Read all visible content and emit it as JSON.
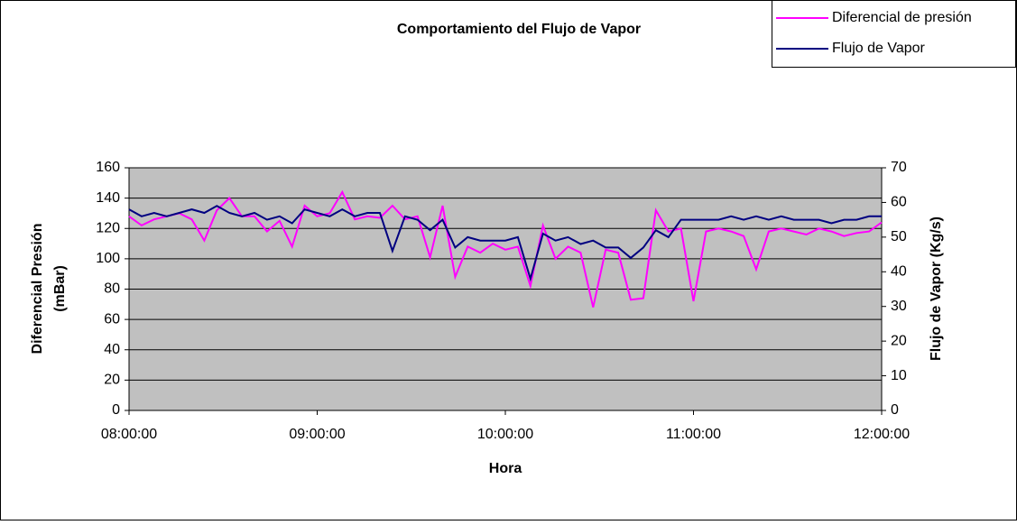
{
  "chart_data": {
    "type": "line",
    "title": "Comportamiento del Flujo de Vapor",
    "x_label": "Hora",
    "y_label": [
      "Diferencial Presión",
      "(mBar)"
    ],
    "y2_label": "Flujo de Vapor (Kg/s)",
    "x": [
      "08:00:00",
      "08:04:00",
      "08:08:00",
      "08:12:00",
      "08:16:00",
      "08:20:00",
      "08:24:00",
      "08:28:00",
      "08:32:00",
      "08:36:00",
      "08:40:00",
      "08:44:00",
      "08:48:00",
      "08:52:00",
      "08:56:00",
      "09:00:00",
      "09:04:00",
      "09:08:00",
      "09:12:00",
      "09:16:00",
      "09:20:00",
      "09:24:00",
      "09:28:00",
      "09:32:00",
      "09:36:00",
      "09:40:00",
      "09:44:00",
      "09:48:00",
      "09:52:00",
      "09:56:00",
      "10:00:00",
      "10:04:00",
      "10:08:00",
      "10:12:00",
      "10:16:00",
      "10:20:00",
      "10:24:00",
      "10:28:00",
      "10:32:00",
      "10:36:00",
      "10:40:00",
      "10:44:00",
      "10:48:00",
      "10:52:00",
      "10:56:00",
      "11:00:00",
      "11:04:00",
      "11:08:00",
      "11:12:00",
      "11:16:00",
      "11:20:00",
      "11:24:00",
      "11:28:00",
      "11:32:00",
      "11:36:00",
      "11:40:00",
      "11:44:00",
      "11:48:00",
      "11:52:00",
      "11:56:00",
      "12:00:00"
    ],
    "series": [
      {
        "name": "Diferencial de presión",
        "color": "#ff00ff",
        "axis": "y",
        "values": [
          128,
          122,
          126,
          128,
          130,
          126,
          112,
          132,
          140,
          128,
          128,
          118,
          125,
          108,
          135,
          128,
          130,
          144,
          126,
          128,
          127,
          135,
          126,
          128,
          101,
          135,
          88,
          108,
          104,
          110,
          106,
          108,
          82,
          122,
          100,
          108,
          104,
          68,
          106,
          104,
          73,
          74,
          132,
          118,
          120,
          72,
          118,
          120,
          118,
          115,
          93,
          118,
          120,
          118,
          116,
          120,
          118,
          115,
          117,
          118,
          124
        ]
      },
      {
        "name": "Flujo de Vapor",
        "color": "#000080",
        "axis": "y2",
        "values": [
          58,
          56,
          57,
          56,
          57,
          58,
          57,
          59,
          57,
          56,
          57,
          55,
          56,
          54,
          58,
          57,
          56,
          58,
          56,
          57,
          57,
          46,
          56,
          55,
          52,
          55,
          47,
          50,
          49,
          49,
          49,
          50,
          38,
          51,
          49,
          50,
          48,
          49,
          47,
          47,
          44,
          47,
          52,
          50,
          55,
          55,
          55,
          55,
          56,
          55,
          56,
          55,
          56,
          55,
          55,
          55,
          54,
          55,
          55,
          56,
          56
        ]
      }
    ],
    "xlim": [
      "08:00:00",
      "12:00:00"
    ],
    "xticks": [
      "08:00:00",
      "09:00:00",
      "10:00:00",
      "11:00:00",
      "12:00:00"
    ],
    "ylim": [
      0,
      160
    ],
    "yticks": [
      0,
      20,
      40,
      60,
      80,
      100,
      120,
      140,
      160
    ],
    "y2lim": [
      0,
      70
    ],
    "y2ticks": [
      0,
      10,
      20,
      30,
      40,
      50,
      60,
      70
    ],
    "grid": true,
    "legend": "upper right"
  }
}
